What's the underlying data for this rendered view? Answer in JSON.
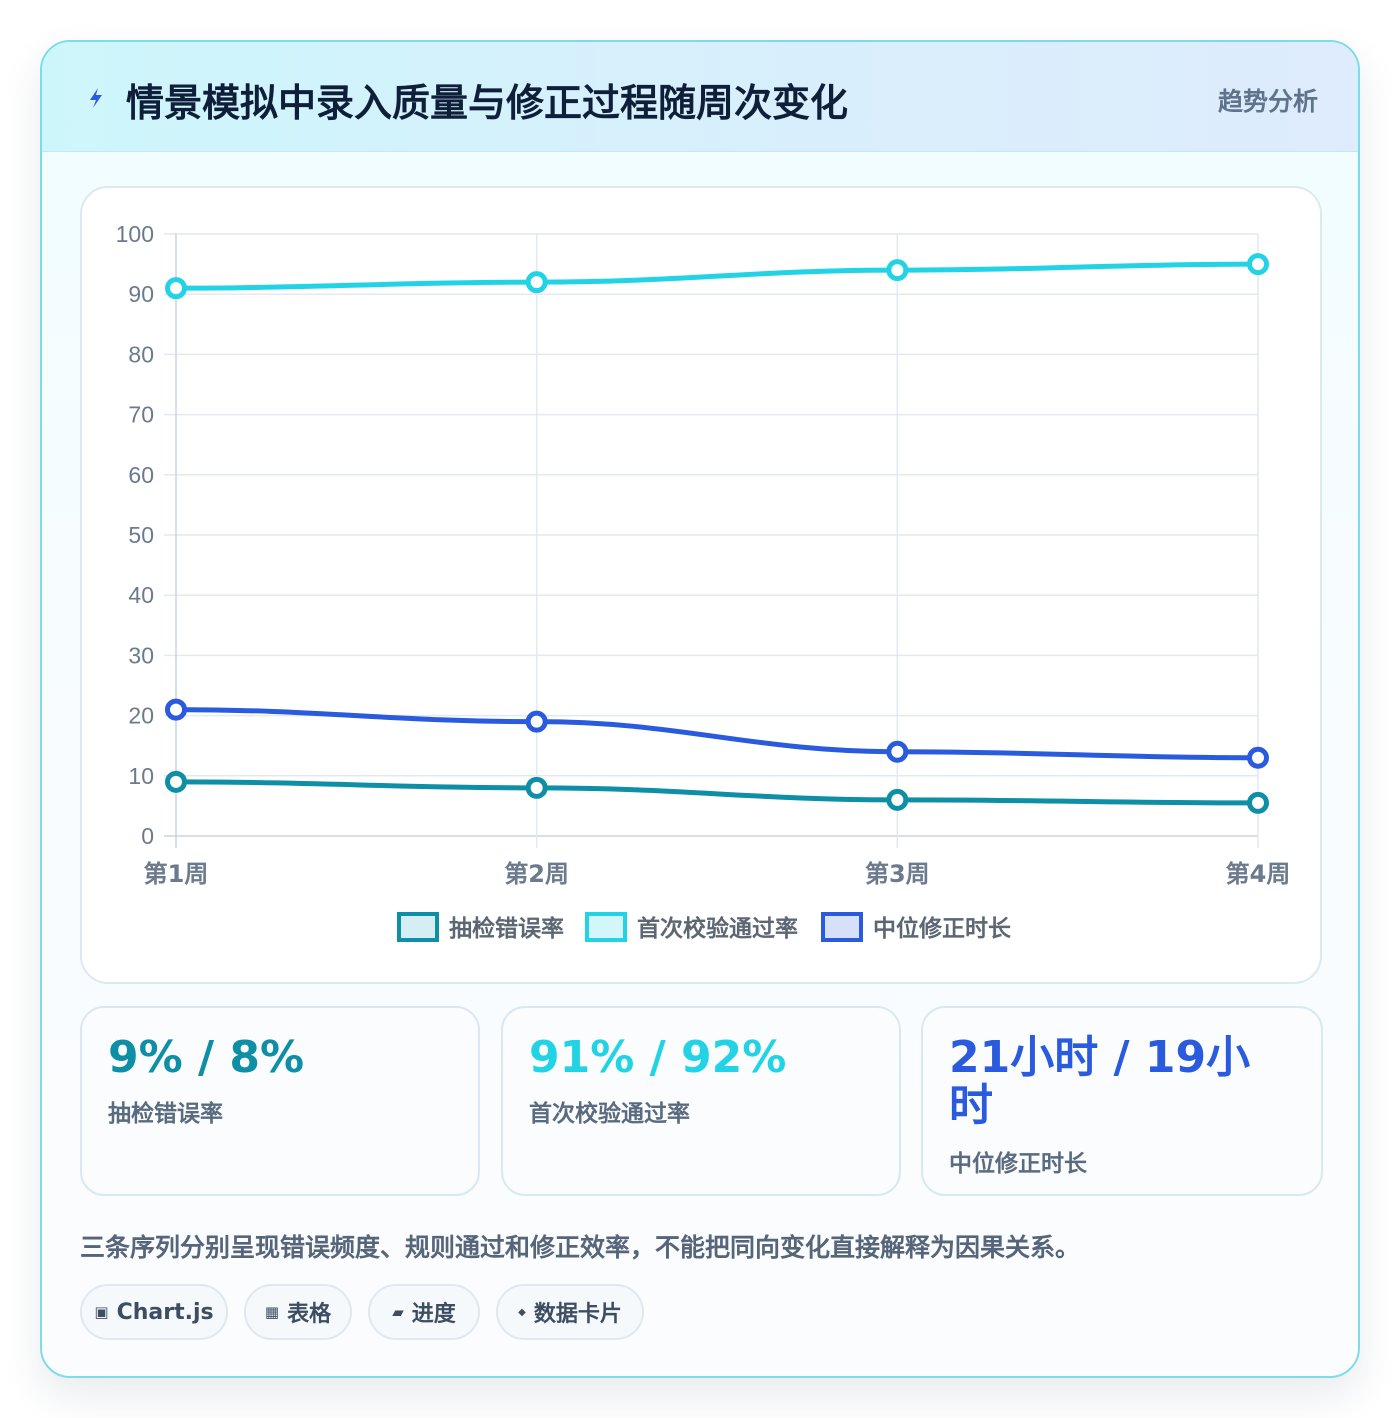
{
  "header": {
    "icon": "lightning-icon",
    "title": "情景模拟中录入质量与修正过程随周次变化",
    "tag": "趋势分析"
  },
  "chart_data": {
    "type": "line",
    "categories": [
      "第1周",
      "第2周",
      "第3周",
      "第4周"
    ],
    "ylim": [
      0,
      100
    ],
    "yticks": [
      "0",
      "10",
      "20",
      "30",
      "40",
      "50",
      "60",
      "70",
      "80",
      "90",
      "100"
    ],
    "grid": true,
    "legend_position": "bottom",
    "series": [
      {
        "name": "抽检错误率",
        "values": [
          9,
          8,
          6,
          5.5
        ],
        "color": "#0e8fa6",
        "fill": "#d4eef3"
      },
      {
        "name": "首次校验通过率",
        "values": [
          91,
          92,
          94,
          95
        ],
        "color": "#22d3e6",
        "fill": "#d2f6fa"
      },
      {
        "name": "中位修正时长",
        "values": [
          21,
          19,
          14,
          13
        ],
        "color": "#2a5bde",
        "fill": "#d6e0f8"
      }
    ]
  },
  "stats": [
    {
      "value": "9% / 8%",
      "label": "抽检错误率",
      "color": "#0e8fa6"
    },
    {
      "value": "91% / 92%",
      "label": "首次校验通过率",
      "color": "#22d3e6"
    },
    {
      "value": "21小时 / 19小时",
      "label": "中位修正时长",
      "color": "#2a5bde"
    }
  ],
  "note": "三条序列分别呈现错误频度、规则通过和修正效率，不能把同向变化直接解释为因果关系。",
  "chips": [
    {
      "icon": "▣",
      "label": "Chart.js"
    },
    {
      "icon": "▦",
      "label": "表格"
    },
    {
      "icon": "▰",
      "label": "进度"
    },
    {
      "icon": "◆",
      "label": "数据卡片"
    }
  ]
}
